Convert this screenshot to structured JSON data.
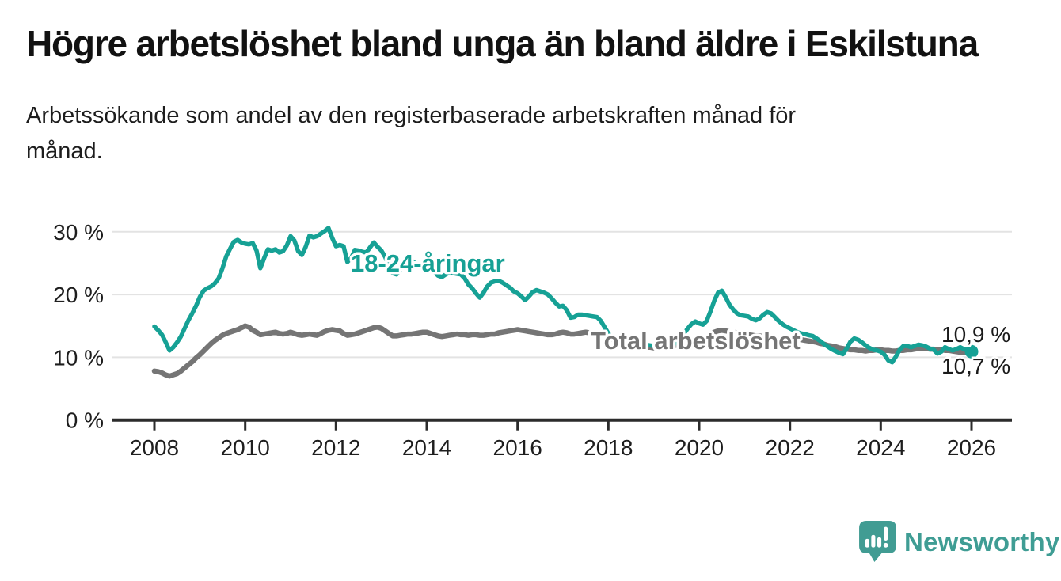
{
  "header": {
    "title": "Högre arbetslöshet bland unga än bland äldre i Eskilstuna",
    "subtitle": "Arbetssökande som andel av den registerbaserade arbetskraften månad för\nmånad."
  },
  "colors": {
    "accent_teal": "#16a195",
    "series_gray": "#757575",
    "logo_teal": "#419c93",
    "axis_dark": "#2b2b2b",
    "gridline_gray": "#e3e3e3"
  },
  "footer": {
    "brand": "Newsworthy"
  },
  "chart_data": {
    "type": "line",
    "title": "Högre arbetslöshet bland unga än bland äldre i Eskilstuna",
    "xlabel": "",
    "ylabel": "",
    "ylim": [
      0,
      32
    ],
    "grid": "horizontal",
    "legend_position": "inline-labels",
    "x_start_year": 2008,
    "x_step_months": 1,
    "x_axis": {
      "ticks": [
        {
          "value": 2008,
          "label": "2008"
        },
        {
          "value": 2010,
          "label": "2010"
        },
        {
          "value": 2012,
          "label": "2012"
        },
        {
          "value": 2014,
          "label": "2014"
        },
        {
          "value": 2016,
          "label": "2016"
        },
        {
          "value": 2018,
          "label": "2018"
        },
        {
          "value": 2020,
          "label": "2020"
        },
        {
          "value": 2022,
          "label": "2022"
        },
        {
          "value": 2024,
          "label": "2024"
        },
        {
          "value": 2026,
          "label": "2026"
        }
      ]
    },
    "y_axis": {
      "ticks": [
        {
          "value": 0,
          "label": "0 %"
        },
        {
          "value": 10,
          "label": "10 %"
        },
        {
          "value": 20,
          "label": "20 %"
        },
        {
          "value": 30,
          "label": "30 %"
        }
      ]
    },
    "end_labels": [
      "10,9 %",
      "10,7 %"
    ],
    "series": [
      {
        "name": "18-24-åringar",
        "color": "#16a195",
        "end_dot": true,
        "end_value_label": "10,9 %",
        "values": [
          14.9,
          14.3,
          13.6,
          12.4,
          11.1,
          11.6,
          12.4,
          13.3,
          14.6,
          15.9,
          17.0,
          18.2,
          19.6,
          20.6,
          21.0,
          21.3,
          21.8,
          22.6,
          24.2,
          26.1,
          27.3,
          28.4,
          28.7,
          28.3,
          28.1,
          28.0,
          28.2,
          27.0,
          24.2,
          25.8,
          27.2,
          27.0,
          27.2,
          26.7,
          26.9,
          27.8,
          29.3,
          28.6,
          26.9,
          26.3,
          27.6,
          29.4,
          29.1,
          29.3,
          29.7,
          30.1,
          30.6,
          29.0,
          27.7,
          27.9,
          27.7,
          25.2,
          25.8,
          27.1,
          27.0,
          26.8,
          26.7,
          27.5,
          28.3,
          27.6,
          27.0,
          26.0,
          24.6,
          23.4,
          23.2,
          24.0,
          24.7,
          25.2,
          25.4,
          25.0,
          24.6,
          24.3,
          24.6,
          24.2,
          23.6,
          23.0,
          22.8,
          23.2,
          23.5,
          23.4,
          23.3,
          23.2,
          22.6,
          21.6,
          21.0,
          20.2,
          19.5,
          20.3,
          21.3,
          21.9,
          22.1,
          22.2,
          21.9,
          21.5,
          21.1,
          20.5,
          20.2,
          19.7,
          19.1,
          19.7,
          20.4,
          20.7,
          20.5,
          20.3,
          20.0,
          19.4,
          18.7,
          18.1,
          18.2,
          17.5,
          16.3,
          16.4,
          16.8,
          16.8,
          16.7,
          16.6,
          16.5,
          16.4,
          15.8,
          14.8,
          13.8,
          13.0,
          12.3,
          11.9,
          12.2,
          12.6,
          12.8,
          12.6,
          12.4,
          12.2,
          12.0,
          11.9,
          11.8,
          11.7,
          11.6,
          11.5,
          11.6,
          11.9,
          12.4,
          13.0,
          13.8,
          14.6,
          15.3,
          15.7,
          15.4,
          15.2,
          15.8,
          17.3,
          19.0,
          20.3,
          20.6,
          19.6,
          18.4,
          17.6,
          17.0,
          16.7,
          16.6,
          16.5,
          16.1,
          15.9,
          16.2,
          16.8,
          17.2,
          17.0,
          16.4,
          15.8,
          15.3,
          14.9,
          14.6,
          14.3,
          14.0,
          13.8,
          13.7,
          13.5,
          13.4,
          13.0,
          12.6,
          12.1,
          11.7,
          11.3,
          11.0,
          10.7,
          10.5,
          11.4,
          12.5,
          13.0,
          12.8,
          12.4,
          11.9,
          11.5,
          11.2,
          11.1,
          10.9,
          10.4,
          9.5,
          9.2,
          10.1,
          11.2,
          11.8,
          11.8,
          11.6,
          11.8,
          12.0,
          11.9,
          11.7,
          11.4,
          11.2,
          10.6,
          10.9,
          11.6,
          11.3,
          11.1,
          11.3,
          11.6,
          11.3,
          11.1,
          10.9
        ]
      },
      {
        "name": "Total arbetslöshet",
        "color": "#757575",
        "end_dot": false,
        "end_value_label": "10,7 %",
        "values": [
          7.8,
          7.7,
          7.5,
          7.2,
          7.0,
          7.2,
          7.4,
          7.8,
          8.3,
          8.8,
          9.3,
          9.9,
          10.4,
          11.0,
          11.6,
          12.2,
          12.7,
          13.1,
          13.5,
          13.8,
          14.0,
          14.2,
          14.4,
          14.7,
          15.0,
          14.8,
          14.3,
          14.0,
          13.6,
          13.7,
          13.8,
          13.9,
          14.0,
          13.8,
          13.7,
          13.8,
          14.0,
          13.8,
          13.6,
          13.5,
          13.6,
          13.7,
          13.6,
          13.5,
          13.8,
          14.1,
          14.3,
          14.4,
          14.3,
          14.2,
          13.8,
          13.5,
          13.6,
          13.7,
          13.9,
          14.1,
          14.3,
          14.5,
          14.7,
          14.8,
          14.6,
          14.2,
          13.8,
          13.4,
          13.4,
          13.5,
          13.6,
          13.7,
          13.7,
          13.8,
          13.9,
          14.0,
          14.0,
          13.8,
          13.6,
          13.4,
          13.3,
          13.4,
          13.5,
          13.6,
          13.7,
          13.6,
          13.6,
          13.5,
          13.6,
          13.6,
          13.5,
          13.5,
          13.6,
          13.7,
          13.7,
          13.9,
          14.0,
          14.1,
          14.2,
          14.3,
          14.4,
          14.3,
          14.2,
          14.1,
          14.0,
          13.9,
          13.8,
          13.7,
          13.6,
          13.6,
          13.7,
          13.9,
          14.0,
          13.9,
          13.7,
          13.7,
          13.8,
          13.9,
          14.0,
          13.9,
          13.9,
          14.0,
          13.8,
          13.5,
          13.2,
          12.9,
          12.7,
          12.5,
          12.3,
          12.1,
          12.0,
          11.9,
          11.8,
          11.7,
          11.6,
          11.6,
          11.5,
          11.5,
          11.6,
          11.6,
          11.7,
          11.8,
          11.9,
          12.0,
          12.1,
          12.2,
          12.3,
          12.4,
          12.5,
          12.7,
          13.2,
          13.7,
          14.0,
          14.2,
          14.3,
          14.2,
          14.1,
          14.0,
          13.9,
          13.8,
          13.7,
          13.6,
          13.5,
          13.4,
          13.4,
          13.3,
          13.3,
          13.2,
          13.1,
          13.0,
          13.0,
          12.9,
          12.9,
          12.9,
          12.9,
          12.8,
          12.7,
          12.6,
          12.5,
          12.4,
          12.2,
          12.1,
          11.9,
          11.8,
          11.7,
          11.5,
          11.4,
          11.3,
          11.2,
          11.2,
          11.1,
          11.1,
          11.0,
          11.1,
          11.1,
          11.2,
          11.2,
          11.1,
          11.1,
          11.0,
          11.0,
          11.1,
          11.1,
          11.2,
          11.2,
          11.3,
          11.4,
          11.4,
          11.4,
          11.3,
          11.3,
          11.2,
          11.2,
          11.1,
          11.1,
          11.0,
          10.9,
          10.8,
          10.8,
          10.7,
          10.7
        ]
      }
    ]
  }
}
